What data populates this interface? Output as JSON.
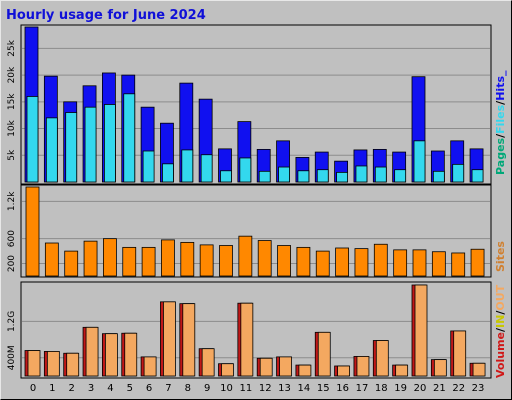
{
  "title": "Hourly usage for June 2024",
  "colors": {
    "hits": "#1010f0",
    "files": "#33d8ee",
    "pages": "#00a878",
    "sites": "#ff8800",
    "kbytes_in": "#c01818",
    "kbytes_out": "#f4a860",
    "volume_label": "#d01818",
    "in_label": "#c8c800",
    "out_label": "#f4a860",
    "sites_label": "#d08030",
    "slash": "#000000",
    "title": "#1010d8"
  },
  "chart_data": [
    {
      "type": "bar",
      "panel": "top",
      "categories": [
        "0",
        "1",
        "2",
        "3",
        "4",
        "5",
        "6",
        "7",
        "8",
        "9",
        "10",
        "11",
        "12",
        "13",
        "14",
        "15",
        "16",
        "17",
        "18",
        "19",
        "20",
        "21",
        "22",
        "23"
      ],
      "series": [
        {
          "name": "Hits",
          "values": [
            29000,
            19800,
            15000,
            18000,
            20400,
            20000,
            14000,
            11000,
            18500,
            15500,
            6200,
            11300,
            6100,
            7700,
            4600,
            5600,
            3900,
            6000,
            6100,
            5600,
            19700,
            5800,
            7700,
            6200
          ]
        },
        {
          "name": "Files",
          "values": [
            16000,
            12000,
            13000,
            14000,
            14500,
            16500,
            5800,
            3400,
            6000,
            5100,
            2100,
            4500,
            2000,
            2800,
            2100,
            2300,
            1800,
            3000,
            2800,
            2300,
            7700,
            2000,
            3300,
            2300
          ]
        },
        {
          "name": "Pages",
          "values": [
            0,
            0,
            0,
            0,
            0,
            0,
            0,
            0,
            0,
            0,
            0,
            0,
            0,
            0,
            0,
            0,
            0,
            0,
            0,
            0,
            0,
            0,
            0,
            0
          ]
        }
      ],
      "y_ticks": [
        "5k",
        "10k",
        "15k",
        "20k",
        "25k"
      ],
      "y_tick_values": [
        5000,
        10000,
        15000,
        20000,
        25000
      ],
      "ylim": [
        0,
        29000
      ],
      "legend": [
        "Pages",
        "Files",
        "Hits"
      ],
      "legend_suffix": "_",
      "legend_placement": "right"
    },
    {
      "type": "bar",
      "panel": "middle",
      "categories": [
        "0",
        "1",
        "2",
        "3",
        "4",
        "5",
        "6",
        "7",
        "8",
        "9",
        "10",
        "11",
        "12",
        "13",
        "14",
        "15",
        "16",
        "17",
        "18",
        "19",
        "20",
        "21",
        "22",
        "23"
      ],
      "series": [
        {
          "name": "Sites",
          "values": [
            1430,
            530,
            400,
            560,
            600,
            460,
            460,
            580,
            540,
            500,
            490,
            640,
            570,
            490,
            460,
            400,
            450,
            440,
            510,
            420,
            420,
            390,
            370,
            430
          ]
        }
      ],
      "y_ticks": [
        "200",
        "600",
        "1.2k"
      ],
      "y_tick_values": [
        200,
        600,
        1200
      ],
      "ylim": [
        0,
        1430
      ],
      "legend": [
        "Sites"
      ],
      "legend_placement": "right"
    },
    {
      "type": "bar",
      "panel": "bottom",
      "categories": [
        "0",
        "1",
        "2",
        "3",
        "4",
        "5",
        "6",
        "7",
        "8",
        "9",
        "10",
        "11",
        "12",
        "13",
        "14",
        "15",
        "16",
        "17",
        "18",
        "19",
        "20",
        "21",
        "22",
        "23"
      ],
      "series": [
        {
          "name": "IN",
          "values": [
            0.56,
            0.54,
            0.5,
            1.07,
            0.93,
            0.94,
            0.42,
            1.63,
            1.59,
            0.6,
            0.27,
            1.6,
            0.39,
            0.42,
            0.24,
            0.96,
            0.22,
            0.43,
            0.78,
            0.24,
            2.0,
            0.36,
            0.99,
            0.28
          ]
        },
        {
          "name": "OUT",
          "values": [
            0.56,
            0.54,
            0.5,
            1.07,
            0.93,
            0.94,
            0.42,
            1.63,
            1.59,
            0.6,
            0.27,
            1.6,
            0.39,
            0.42,
            0.24,
            0.96,
            0.22,
            0.43,
            0.78,
            0.24,
            2.0,
            0.36,
            0.99,
            0.28
          ]
        }
      ],
      "y_ticks": [
        "400M",
        "1.2G"
      ],
      "y_tick_values": [
        0.4,
        1.2
      ],
      "ylim": [
        0,
        2.0
      ],
      "legend": [
        "Volume",
        "IN",
        "OUT"
      ],
      "legend_placement": "right"
    }
  ]
}
